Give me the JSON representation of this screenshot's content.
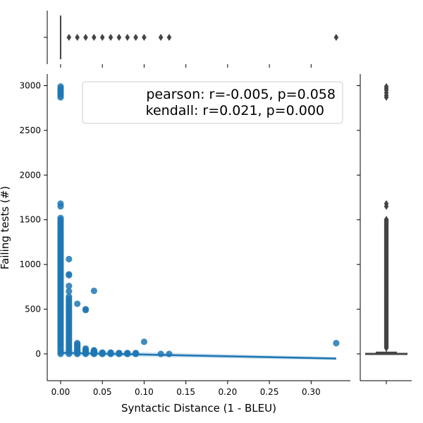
{
  "chart_data": {
    "type": "scatter",
    "title": "",
    "xlabel": "Syntactic Distance (1 - BLEU)",
    "ylabel": "Failing tests (#)",
    "xlim": [
      -0.016,
      0.347
    ],
    "ylim": [
      -300,
      3130
    ],
    "x_ticks": [
      0.0,
      0.05,
      0.1,
      0.15,
      0.2,
      0.25,
      0.3
    ],
    "x_tick_labels": [
      "0.00",
      "0.05",
      "0.10",
      "0.15",
      "0.20",
      "0.25",
      "0.30"
    ],
    "y_ticks": [
      0,
      500,
      1000,
      1500,
      2000,
      2500,
      3000
    ],
    "y_tick_labels": [
      "0",
      "500",
      "1000",
      "1500",
      "2000",
      "2500",
      "3000"
    ],
    "legend": {
      "placement": "top-right",
      "lines": [
        "pearson: r=-0.005, p=0.058",
        "kendall: r=0.021, p=0.000"
      ]
    },
    "stats": {
      "pearson": {
        "r": -0.005,
        "p": 0.058
      },
      "kendall": {
        "r": 0.021,
        "p": 0.0
      }
    },
    "points_color": "#1f77b4",
    "regression": {
      "x": [
        0.0,
        0.33
      ],
      "y": [
        12,
        -52
      ],
      "ci_half_width_at_end": 18,
      "color": "#1f77b4"
    },
    "column_groups": [
      {
        "x": 0.0,
        "y_max": 1500,
        "top_points": [
          1520,
          1650,
          1680,
          2870,
          2890,
          2910,
          2930,
          2950,
          2970,
          2990
        ]
      },
      {
        "x": 0.01,
        "y_max": 650,
        "top_points": [
          700,
          760,
          880,
          890,
          1060
        ]
      },
      {
        "x": 0.02,
        "y_max": 120,
        "top_points": [
          560
        ]
      },
      {
        "x": 0.03,
        "y_max": 60,
        "top_points": [
          490,
          500
        ]
      },
      {
        "x": 0.04,
        "y_max": 40,
        "top_points": [
          705
        ]
      },
      {
        "x": 0.05,
        "y_max": 15,
        "top_points": []
      },
      {
        "x": 0.06,
        "y_max": 15,
        "top_points": []
      },
      {
        "x": 0.07,
        "y_max": 10,
        "top_points": []
      },
      {
        "x": 0.08,
        "y_max": 10,
        "top_points": []
      },
      {
        "x": 0.09,
        "y_max": 10,
        "top_points": []
      }
    ],
    "extra_points": [
      {
        "x": 0.1,
        "y": 135
      },
      {
        "x": 0.12,
        "y": 0
      },
      {
        "x": 0.13,
        "y": 0
      },
      {
        "x": 0.33,
        "y": 120
      }
    ],
    "top_marginal_outliers_x": [
      0.01,
      0.02,
      0.03,
      0.04,
      0.05,
      0.06,
      0.07,
      0.08,
      0.09,
      0.1,
      0.12,
      0.13,
      0.33
    ],
    "right_marginal": {
      "box_median": 0,
      "box_q3": 25,
      "whisker_high": 60,
      "outlier_range_min": 65,
      "outlier_range_max": 1510,
      "outlier_extra": [
        1650,
        1680,
        2870,
        2890,
        2920,
        2950,
        2970,
        2990
      ]
    },
    "marginal_color": "#444444"
  }
}
